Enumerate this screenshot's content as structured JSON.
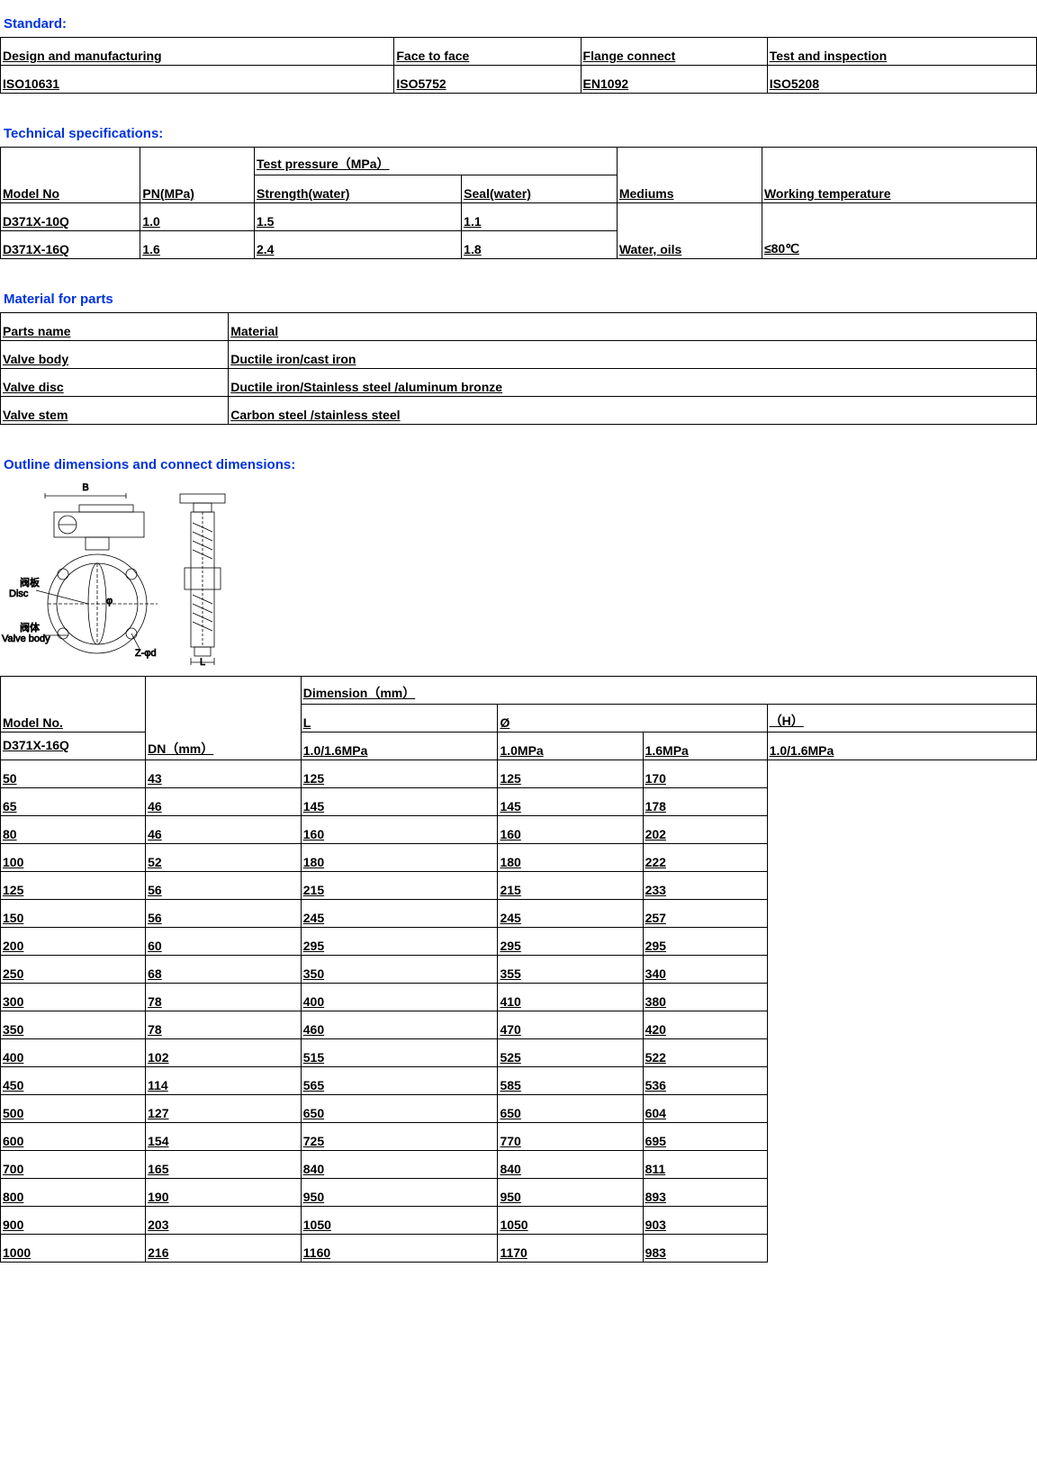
{
  "standard": {
    "title": "Standard:",
    "headers": [
      "Design and manufacturing",
      "Face to face",
      "Flange connect",
      "Test and inspection"
    ],
    "values": [
      "ISO10631",
      "ISO5752",
      "EN1092",
      "ISO5208"
    ]
  },
  "techspec": {
    "title": "Technical specifications:",
    "headers": {
      "model": "Model No",
      "pn": "PN(MPa)",
      "testpressure": "Test pressure（MPa）",
      "strength": "Strength(water)",
      "seal": "Seal(water)",
      "mediums": "Mediums",
      "worktemp": "Working temperature"
    },
    "rows": [
      {
        "model": "D371X-10Q",
        "pn": "1.0",
        "strength": "1.5",
        "seal": "1.1"
      },
      {
        "model": "D371X-16Q",
        "pn": "1.6",
        "strength": "2.4",
        "seal": "1.8"
      }
    ],
    "mediums": "Water, oils",
    "worktemp": "≤80℃"
  },
  "material": {
    "title": "Material for parts",
    "headers": [
      "Parts name",
      "Material"
    ],
    "rows": [
      [
        "Valve body",
        "Ductile iron/cast iron"
      ],
      [
        "Valve disc",
        "Ductile iron/Stainless steel /aluminum bronze"
      ],
      [
        "Valve stem",
        "Carbon steel /stainless steel"
      ]
    ]
  },
  "outline": {
    "title": "Outline dimensions and connect dimensions:",
    "headers": {
      "model": "Model No.",
      "dn": "DN（mm）",
      "dim": "Dimension（mm）",
      "l": "L",
      "phi": "Ø",
      "h": "（H）",
      "sub_l": "1.0/1.6MPa",
      "sub_phi1": "1.0MPa",
      "sub_phi2": "1.6MPa",
      "sub_h": "1.0/1.6MPa"
    },
    "model": "D371X-16Q",
    "rows": [
      [
        "50",
        "43",
        "125",
        "125",
        "170"
      ],
      [
        "65",
        "46",
        "145",
        "145",
        "178"
      ],
      [
        "80",
        "46",
        "160",
        "160",
        "202"
      ],
      [
        "100",
        "52",
        "180",
        "180",
        "222"
      ],
      [
        "125",
        "56",
        "215",
        "215",
        "233"
      ],
      [
        "150",
        "56",
        "245",
        "245",
        "257"
      ],
      [
        "200",
        "60",
        "295",
        "295",
        "295"
      ],
      [
        "250",
        "68",
        "350",
        "355",
        "340"
      ],
      [
        "300",
        "78",
        "400",
        "410",
        "380"
      ],
      [
        "350",
        "78",
        "460",
        "470",
        "420"
      ],
      [
        "400",
        "102",
        "515",
        "525",
        "522"
      ],
      [
        "450",
        "114",
        "565",
        "585",
        "536"
      ],
      [
        "500",
        "127",
        "650",
        "650",
        "604"
      ],
      [
        "600",
        "154",
        "725",
        "770",
        "695"
      ],
      [
        "700",
        "165",
        "840",
        "840",
        "811"
      ],
      [
        "800",
        "190",
        "950",
        "950",
        "893"
      ],
      [
        "900",
        "203",
        "1050",
        "1050",
        "903"
      ],
      [
        "1000",
        "216",
        "1160",
        "1170",
        "983"
      ]
    ]
  },
  "diagram": {
    "disc_zh": "阀板",
    "disc_en": "Disc",
    "body_zh": "阀体",
    "body_en": "Valve body",
    "b": "B",
    "z": "Z-φd",
    "l": "L"
  },
  "column_widths": {
    "standard": [
      "38%",
      "18%",
      "18%",
      "26%"
    ],
    "tech": [
      "13.5%",
      "11%",
      "20%",
      "15%",
      "14%",
      "26.5%"
    ],
    "material": [
      "22%",
      "78%"
    ],
    "outline": [
      "14%",
      "15%",
      "19%",
      "14%",
      "12%",
      "26%"
    ]
  }
}
